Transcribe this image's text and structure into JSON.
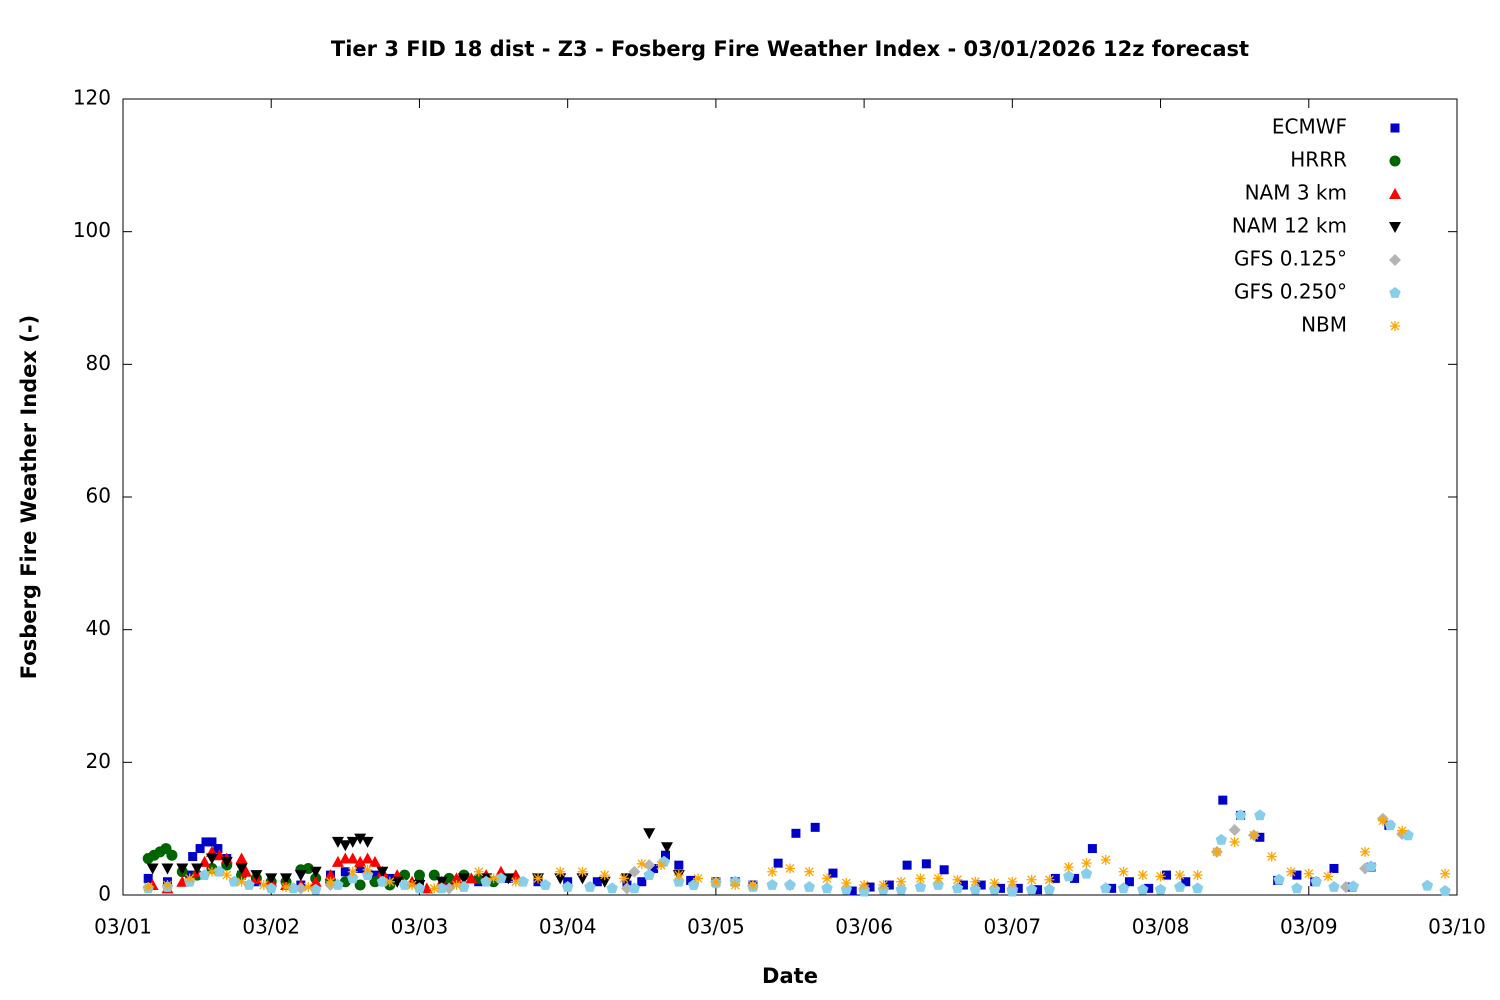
{
  "chart_data": {
    "type": "scatter",
    "title": "Tier 3 FID 18 dist - Z3 - Fosberg Fire Weather Index - 03/01/2026 12z forecast",
    "x_label": "Date",
    "y_label": "Fosberg Fire Weather Index (-)",
    "xlim": [
      0,
      9
    ],
    "xticks": [
      {
        "value": 0,
        "label": "03/01"
      },
      {
        "value": 1,
        "label": "03/02"
      },
      {
        "value": 2,
        "label": "03/03"
      },
      {
        "value": 3,
        "label": "03/04"
      },
      {
        "value": 4,
        "label": "03/05"
      },
      {
        "value": 5,
        "label": "03/06"
      },
      {
        "value": 6,
        "label": "03/07"
      },
      {
        "value": 7,
        "label": "03/08"
      },
      {
        "value": 8,
        "label": "03/09"
      },
      {
        "value": 9,
        "label": "03/10"
      }
    ],
    "ylim": [
      0,
      120
    ],
    "yticks": [
      0,
      20,
      40,
      60,
      80,
      100,
      120
    ],
    "legend": "top-right",
    "series": [
      {
        "name": "ECMWF",
        "color": "#0000c8",
        "marker": "square",
        "x": [
          0.17,
          0.3,
          0.45,
          0.47,
          0.52,
          0.56,
          0.6,
          0.64,
          0.7,
          0.8,
          0.9,
          1.0,
          1.2,
          1.4,
          1.5,
          1.6,
          1.7,
          1.8,
          2.0,
          2.2,
          2.4,
          2.6,
          2.8,
          3.0,
          3.2,
          3.4,
          3.5,
          3.58,
          3.66,
          3.75,
          3.83,
          4.0,
          4.13,
          4.25,
          4.42,
          4.54,
          4.67,
          4.79,
          4.92,
          5.04,
          5.17,
          5.29,
          5.42,
          5.54,
          5.67,
          5.79,
          5.92,
          6.04,
          6.17,
          6.29,
          6.42,
          6.54,
          6.67,
          6.79,
          6.92,
          7.04,
          7.17,
          7.42,
          7.54,
          7.67,
          7.79,
          7.92,
          8.04,
          8.17,
          8.29,
          8.42,
          8.54
        ],
        "values": [
          2.5,
          2,
          3,
          5.8,
          7,
          8,
          8,
          7,
          5.5,
          3,
          2,
          1.5,
          1.5,
          3,
          3.5,
          4,
          3,
          2.5,
          2,
          1.5,
          2,
          2.5,
          2,
          2,
          2,
          1.5,
          2,
          4,
          6,
          4.5,
          2.2,
          2,
          2,
          1.5,
          4.8,
          9.3,
          10.2,
          3.3,
          0.6,
          1.2,
          1.5,
          4.5,
          4.7,
          3.8,
          1.5,
          1.5,
          1,
          1,
          0.8,
          2.5,
          2.5,
          7,
          1,
          2,
          1,
          3,
          2,
          14.3,
          12,
          8.7,
          2.2,
          3,
          2,
          4,
          1.2,
          4.2,
          10.5
        ]
      },
      {
        "name": "HRRR",
        "color": "#006400",
        "marker": "circle",
        "x": [
          0.17,
          0.21,
          0.25,
          0.29,
          0.33,
          0.4,
          0.5,
          0.6,
          0.7,
          0.8,
          0.9,
          1.0,
          1.1,
          1.2,
          1.25,
          1.3,
          1.4,
          1.5,
          1.6,
          1.7,
          1.8,
          1.9,
          2.0,
          2.1,
          2.2,
          2.3,
          2.4,
          2.5
        ],
        "values": [
          5.5,
          6,
          6.5,
          7,
          6,
          3.5,
          3,
          4,
          4.5,
          3,
          2.5,
          2,
          2,
          3.8,
          4,
          2.5,
          2,
          2,
          1.5,
          2,
          1.5,
          3,
          3,
          3,
          2.5,
          3,
          2.5,
          2
        ]
      },
      {
        "name": "NAM 3 km",
        "color": "#ff0000",
        "marker": "triangle-up",
        "x": [
          0.2,
          0.3,
          0.4,
          0.5,
          0.55,
          0.6,
          0.65,
          0.7,
          0.8,
          0.83,
          0.9,
          1.0,
          1.1,
          1.2,
          1.3,
          1.4,
          1.45,
          1.5,
          1.55,
          1.6,
          1.65,
          1.7,
          1.75,
          1.85,
          1.95,
          2.05,
          2.15,
          2.25,
          2.35,
          2.45,
          2.55,
          2.65
        ],
        "values": [
          1.5,
          1,
          2,
          3.5,
          5,
          6.5,
          6,
          5.5,
          5.5,
          3.5,
          2.5,
          2,
          1.5,
          1.5,
          2,
          3,
          5,
          5.5,
          5.5,
          5,
          5.5,
          5,
          3.5,
          3,
          2,
          1,
          2,
          2.5,
          2.5,
          3,
          3.5,
          3
        ]
      },
      {
        "name": "NAM 12 km",
        "color": "#000000",
        "marker": "triangle-down",
        "x": [
          0.2,
          0.3,
          0.4,
          0.5,
          0.6,
          0.7,
          0.8,
          0.9,
          1.0,
          1.1,
          1.2,
          1.3,
          1.45,
          1.5,
          1.55,
          1.6,
          1.65,
          1.75,
          1.85,
          2.0,
          2.15,
          2.3,
          2.45,
          2.6,
          2.8,
          2.95,
          3.1,
          3.25,
          3.4,
          3.55,
          3.67,
          3.75
        ],
        "values": [
          4,
          4,
          4,
          4,
          5.5,
          5,
          4,
          3,
          2.5,
          2.5,
          3,
          3.5,
          8,
          7.5,
          8,
          8.5,
          8,
          3.5,
          2,
          1.5,
          2,
          2.5,
          2.5,
          2.5,
          2.5,
          2.5,
          2.5,
          2,
          2.5,
          9.3,
          7.2,
          3
        ]
      },
      {
        "name": "GFS 0.125°",
        "color": "#b4b4b4",
        "marker": "diamond",
        "x": [
          1.2,
          1.4,
          2.2,
          3.4,
          3.45,
          3.55,
          3.65,
          4.5,
          5.0,
          6.0,
          7.38,
          7.5,
          7.63,
          8.25,
          8.38,
          8.5,
          8.63
        ],
        "values": [
          1,
          1.5,
          1,
          1,
          3.5,
          4.5,
          5,
          1.5,
          1,
          1,
          6.5,
          9.8,
          9,
          1.2,
          4,
          11.5,
          9.2
        ]
      },
      {
        "name": "GFS 0.250°",
        "color": "#87ceeb",
        "marker": "pentagon",
        "x": [
          0.17,
          0.3,
          0.45,
          0.55,
          0.65,
          0.75,
          0.85,
          1.0,
          1.15,
          1.3,
          1.45,
          1.55,
          1.65,
          1.75,
          1.9,
          2.0,
          2.15,
          2.3,
          2.45,
          2.55,
          2.7,
          2.85,
          3.0,
          3.15,
          3.3,
          3.45,
          3.55,
          3.65,
          3.75,
          3.85,
          4.0,
          4.13,
          4.25,
          4.38,
          4.5,
          4.63,
          4.75,
          4.88,
          5.0,
          5.13,
          5.25,
          5.38,
          5.5,
          5.63,
          5.75,
          5.88,
          6.0,
          6.13,
          6.25,
          6.38,
          6.5,
          6.63,
          6.75,
          6.88,
          7.0,
          7.13,
          7.25,
          7.41,
          7.54,
          7.67,
          7.8,
          7.92,
          8.05,
          8.17,
          8.3,
          8.42,
          8.55,
          8.67,
          8.8,
          8.92
        ],
        "values": [
          1,
          1.2,
          2,
          3,
          3.5,
          2,
          1.5,
          1,
          1,
          0.8,
          1.5,
          2.5,
          3,
          2,
          1.5,
          1,
          1,
          1.2,
          2,
          2.5,
          2,
          1.5,
          1.2,
          1.2,
          1,
          1,
          3,
          5,
          2,
          1.5,
          1.8,
          2,
          1.2,
          1.5,
          1.5,
          1.2,
          1,
          0.8,
          0.5,
          0.8,
          0.8,
          1.2,
          1.5,
          1,
          0.8,
          0.8,
          0.5,
          0.8,
          0.8,
          2.8,
          3.2,
          1,
          1,
          0.8,
          0.8,
          1.2,
          1,
          8.3,
          12,
          12,
          2.3,
          1,
          2,
          1.2,
          1.3,
          4.3,
          10.5,
          9,
          1.4,
          0.6
        ]
      },
      {
        "name": "NBM",
        "color": "#ffa500",
        "marker": "star",
        "x": [
          0.17,
          0.3,
          0.45,
          0.6,
          0.7,
          0.8,
          0.95,
          1.1,
          1.25,
          1.4,
          1.55,
          1.65,
          1.8,
          1.95,
          2.1,
          2.25,
          2.4,
          2.5,
          2.65,
          2.8,
          2.95,
          3.1,
          3.25,
          3.38,
          3.5,
          3.63,
          3.75,
          3.88,
          4.0,
          4.13,
          4.25,
          4.38,
          4.5,
          4.63,
          4.75,
          4.88,
          5.0,
          5.13,
          5.25,
          5.38,
          5.5,
          5.63,
          5.75,
          5.88,
          6.0,
          6.13,
          6.25,
          6.38,
          6.5,
          6.63,
          6.75,
          6.88,
          7.0,
          7.13,
          7.25,
          7.38,
          7.5,
          7.63,
          7.75,
          7.88,
          8.0,
          8.13,
          8.38,
          8.5,
          8.63,
          8.92
        ],
        "values": [
          1.2,
          1.5,
          2.5,
          3.5,
          3,
          2,
          1.5,
          1.2,
          1.2,
          2,
          3.5,
          3.8,
          2,
          1.5,
          1,
          1.5,
          3.5,
          2.5,
          2,
          2.5,
          3.5,
          3.5,
          3,
          2.5,
          4.7,
          4.5,
          3,
          2.5,
          2,
          1.5,
          1.5,
          3.5,
          4,
          3.5,
          2.5,
          1.8,
          1.5,
          1.5,
          2,
          2.5,
          2.5,
          2.3,
          2,
          1.8,
          2,
          2.3,
          2.3,
          4.2,
          4.8,
          5.3,
          3.5,
          3,
          2.8,
          3,
          3,
          6.5,
          8,
          9,
          5.8,
          3.5,
          3.2,
          2.8,
          6.5,
          11.2,
          9.7,
          3.2
        ]
      }
    ]
  }
}
